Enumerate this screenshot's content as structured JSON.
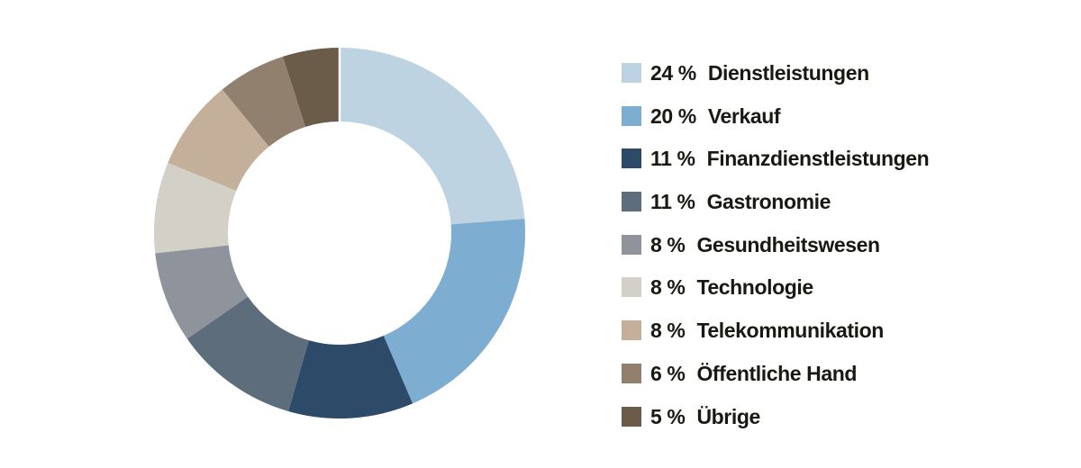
{
  "chart_data": {
    "type": "pie",
    "subtype": "donut",
    "title": "",
    "legend_position": "right",
    "start_angle_deg": 0,
    "direction": "clockwise",
    "hole_ratio": 0.6,
    "displayed_total": 101,
    "separator_color": "#ffffff",
    "text_color": "#181a12",
    "segments": [
      {
        "label": "Dienstleistungen",
        "value": 24,
        "percent_display": "24 %",
        "color": "#bed3e1"
      },
      {
        "label": "Verkauf",
        "value": 20,
        "percent_display": "20 %",
        "color": "#7eadd2"
      },
      {
        "label": "Finanzdienstleistungen",
        "value": 11,
        "percent_display": "11 %",
        "color": "#2d4a68"
      },
      {
        "label": "Gastronomie",
        "value": 11,
        "percent_display": "11 %",
        "color": "#5d6d7b"
      },
      {
        "label": "Gesundheitswesen",
        "value": 8,
        "percent_display": "8 %",
        "color": "#8f949c"
      },
      {
        "label": "Technologie",
        "value": 8,
        "percent_display": "8 %",
        "color": "#d3d0c7"
      },
      {
        "label": "Telekommunikation",
        "value": 8,
        "percent_display": "8 %",
        "color": "#c4af9a"
      },
      {
        "label": "Öffentliche Hand",
        "value": 6,
        "percent_display": "6 %",
        "color": "#91806d"
      },
      {
        "label": "Übrige",
        "value": 5,
        "percent_display": "5 %",
        "color": "#6a5c49"
      }
    ]
  }
}
